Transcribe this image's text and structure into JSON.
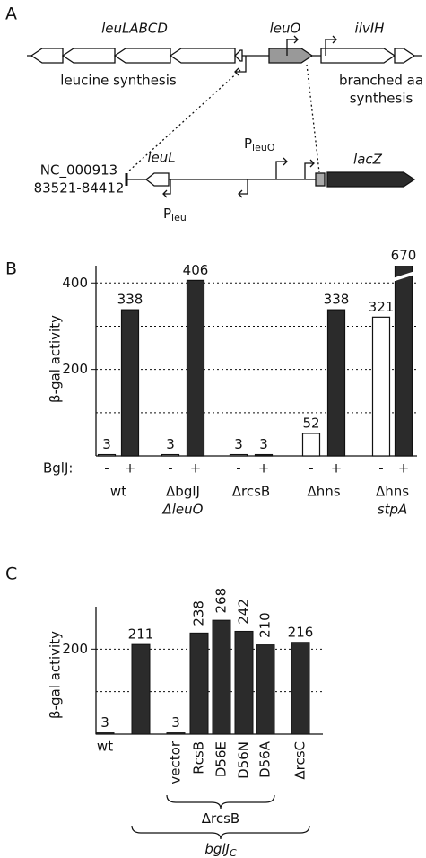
{
  "panel_labels": [
    "A",
    "B",
    "C"
  ],
  "diagram": {
    "gene_cluster_left": "leuLABCD",
    "gene_center": "leuO",
    "gene_cluster_right": "ilvIH",
    "left_function": "leucine synthesis",
    "right_function": [
      "branched aa",
      "synthesis"
    ],
    "accession": [
      "NC_000913",
      "83521-84412"
    ],
    "construct_gene": "leuL",
    "promoter_1": {
      "base": "P",
      "sub": "leuO"
    },
    "promoter_2": {
      "base": "P",
      "sub": "leu"
    },
    "reporter": "lacZ"
  },
  "chart_data": [
    {
      "type": "bar",
      "ylabel": "β-gal activity",
      "ylim": [
        0,
        440
      ],
      "yticks": [
        200,
        400
      ],
      "gridlines": [
        100,
        200,
        300,
        400
      ],
      "legend_title": "BglJ:",
      "axis_break": true,
      "categories": [
        [
          "wt"
        ],
        [
          "ΔbglJ",
          "ΔleuO"
        ],
        [
          "ΔrcsB"
        ],
        [
          "Δhns"
        ],
        [
          "Δhns",
          "stpA"
        ]
      ],
      "series": [
        {
          "name": "-",
          "color": "#ffffff",
          "values": [
            3,
            3,
            3,
            52,
            321
          ]
        },
        {
          "name": "+",
          "color": "#2b2b2b",
          "values": [
            338,
            406,
            3,
            338,
            670
          ]
        }
      ]
    },
    {
      "type": "bar",
      "ylabel": "β-gal activity",
      "ylim": [
        0,
        300
      ],
      "yticks": [
        200
      ],
      "gridlines": [
        100,
        200
      ],
      "categories": [
        "wt",
        null,
        "vector",
        "RcsB",
        "D56E",
        "D56N",
        "D56A",
        "ΔrcsC"
      ],
      "values": [
        3,
        211,
        3,
        238,
        268,
        242,
        210,
        216
      ],
      "color": "#2b2b2b",
      "brackets": [
        {
          "label": "ΔrcsB",
          "from": 2,
          "to": 6
        },
        {
          "label": "bglJ",
          "subscript": "C",
          "from": 1,
          "to": 7
        }
      ]
    }
  ]
}
